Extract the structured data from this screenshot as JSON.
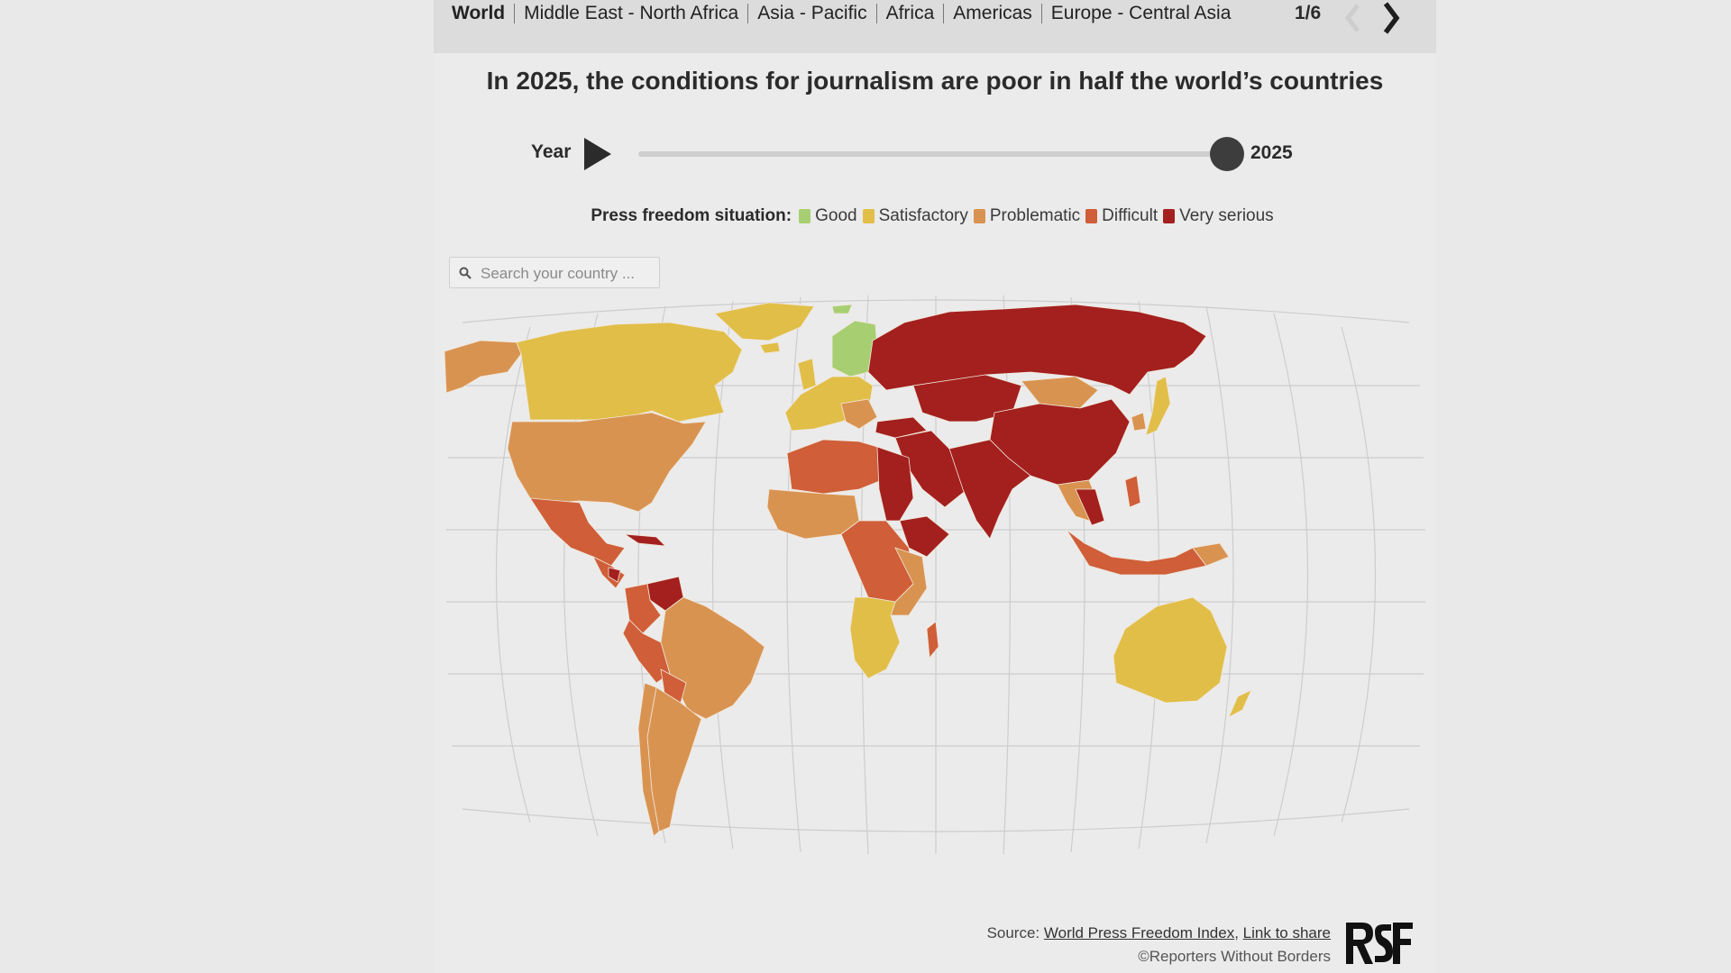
{
  "nav": {
    "tabs": [
      "World",
      "Middle East - North Africa",
      "Asia - Pacific",
      "Africa",
      "Americas",
      "Europe - Central Asia"
    ],
    "page_indicator": "1/6"
  },
  "title": "In 2025, the conditions for journalism are poor in half the world’s countries",
  "year_control": {
    "label": "Year",
    "value": "2025"
  },
  "legend": {
    "title": "Press freedom situation:",
    "items": [
      {
        "label": "Good",
        "color": "#a7cf72"
      },
      {
        "label": "Satisfactory",
        "color": "#e1be48"
      },
      {
        "label": "Problematic",
        "color": "#d99351"
      },
      {
        "label": "Difficult",
        "color": "#cf5e39"
      },
      {
        "label": "Very serious",
        "color": "#a3201e"
      }
    ]
  },
  "search": {
    "placeholder": "Search your country ..."
  },
  "footer": {
    "source_prefix": "Source: ",
    "source_link": "World Press Freedom Index",
    "separator": ", ",
    "share_link": "Link to share",
    "copyright": "©Reporters Without Borders"
  },
  "logo_text": "RSF"
}
